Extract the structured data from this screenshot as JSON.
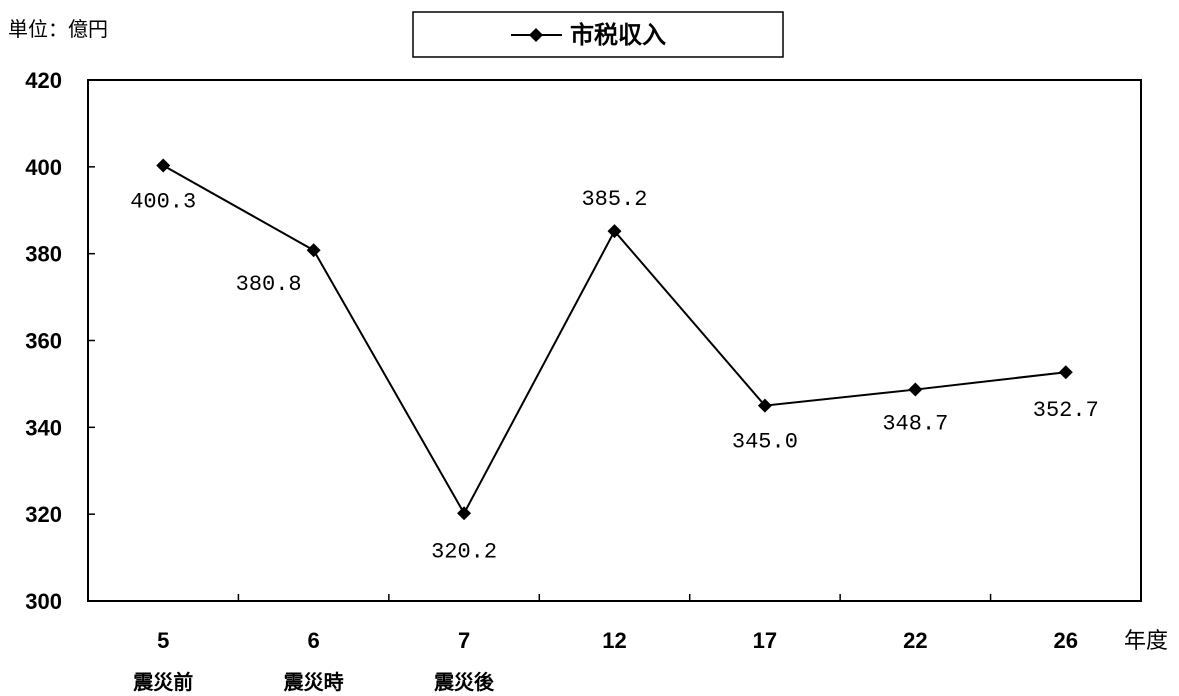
{
  "unit_label": "単位：億円",
  "x_unit_label": "年度",
  "chart_data": {
    "type": "line",
    "categories": [
      "5",
      "6",
      "7",
      "12",
      "17",
      "22",
      "26"
    ],
    "category_notes": [
      "震災前",
      "震災時",
      "震災後",
      "",
      "",
      "",
      ""
    ],
    "series": [
      {
        "name": "市税収入",
        "values": [
          400.3,
          380.8,
          320.2,
          385.2,
          345.0,
          348.7,
          352.7
        ],
        "labels": [
          "400.3",
          "380.8",
          "320.2",
          "385.2",
          "345.0",
          "348.7",
          "352.7"
        ],
        "color": "#000000",
        "marker": "diamond"
      }
    ],
    "ylim": [
      300,
      420
    ],
    "yticks": [
      "300",
      "320",
      "340",
      "360",
      "380",
      "400",
      "420"
    ],
    "grid": false,
    "legend_position": "top-center"
  }
}
